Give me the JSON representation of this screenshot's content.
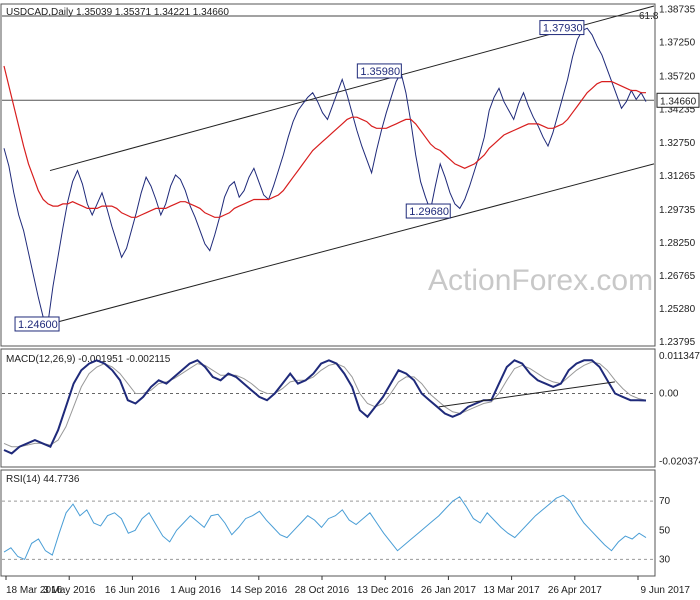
{
  "chart_data": {
    "type": "line",
    "symbol": "USDCAD",
    "timeframe": "Daily",
    "ohlc_header": "USDCAD,Daily  1.35039 1.35371 1.34221 1.34660",
    "watermark": "ActionForex.com",
    "x_labels": [
      "18 Mar 2016",
      "3 May 2016",
      "16 Jun 2016",
      "1 Aug 2016",
      "14 Sep 2016",
      "28 Oct 2016",
      "13 Dec 2016",
      "26 Jan 2017",
      "13 Mar 2017",
      "26 Apr 2017",
      "9 Jun 2017"
    ],
    "price_panel": {
      "ylim": [
        1.237,
        1.389
      ],
      "y_ticks": [
        "1.38735",
        "1.37250",
        "1.35720",
        "1.34235",
        "1.32750",
        "1.31265",
        "1.29735",
        "1.28250",
        "1.26765",
        "1.25280",
        "1.23795"
      ],
      "current_price": "1.34660",
      "fib_label": "61.8",
      "fib_level": 1.3845,
      "annotations": [
        {
          "label": "1.24600",
          "value": 1.246
        },
        {
          "label": "1.35980",
          "value": 1.3598
        },
        {
          "label": "1.29680",
          "value": 1.2968
        },
        {
          "label": "1.37930",
          "value": 1.3793
        }
      ],
      "channel_upper": [
        [
          0,
          1.315
        ],
        [
          1.0,
          1.389
        ]
      ],
      "channel_lower": [
        [
          0,
          1.246
        ],
        [
          1.0,
          1.318
        ]
      ],
      "series": [
        {
          "name": "close",
          "color": "#1f2a7a",
          "values": [
            1.325,
            1.317,
            1.305,
            1.295,
            1.288,
            1.278,
            1.268,
            1.258,
            1.249,
            1.247,
            1.263,
            1.276,
            1.289,
            1.301,
            1.31,
            1.315,
            1.309,
            1.3,
            1.295,
            1.3,
            1.305,
            1.298,
            1.29,
            1.283,
            1.276,
            1.28,
            1.288,
            1.296,
            1.305,
            1.312,
            1.308,
            1.302,
            1.295,
            1.3,
            1.308,
            1.313,
            1.311,
            1.306,
            1.299,
            1.294,
            1.288,
            1.282,
            1.279,
            1.286,
            1.294,
            1.303,
            1.308,
            1.31,
            1.303,
            1.306,
            1.312,
            1.316,
            1.31,
            1.304,
            1.302,
            1.308,
            1.315,
            1.322,
            1.33,
            1.337,
            1.342,
            1.345,
            1.348,
            1.35,
            1.346,
            1.341,
            1.338,
            1.344,
            1.35,
            1.356,
            1.349,
            1.341,
            1.333,
            1.326,
            1.32,
            1.314,
            1.324,
            1.333,
            1.341,
            1.348,
            1.355,
            1.359,
            1.35,
            1.337,
            1.322,
            1.31,
            1.303,
            1.297,
            1.308,
            1.318,
            1.312,
            1.305,
            1.3,
            1.298,
            1.302,
            1.308,
            1.315,
            1.322,
            1.33,
            1.342,
            1.348,
            1.352,
            1.346,
            1.342,
            1.338,
            1.345,
            1.35,
            1.344,
            1.339,
            1.335,
            1.33,
            1.326,
            1.332,
            1.34,
            1.348,
            1.356,
            1.366,
            1.374,
            1.378,
            1.379,
            1.376,
            1.371,
            1.367,
            1.361,
            1.355,
            1.349,
            1.343,
            1.346,
            1.351,
            1.347,
            1.35,
            1.346
          ]
        },
        {
          "name": "ema",
          "color": "#d81e1e",
          "values": [
            1.362,
            1.353,
            1.344,
            1.335,
            1.326,
            1.318,
            1.312,
            1.306,
            1.302,
            1.3,
            1.299,
            1.299,
            1.3,
            1.3,
            1.301,
            1.3,
            1.299,
            1.298,
            1.298,
            1.298,
            1.299,
            1.299,
            1.299,
            1.298,
            1.296,
            1.295,
            1.294,
            1.294,
            1.295,
            1.296,
            1.297,
            1.298,
            1.298,
            1.298,
            1.299,
            1.3,
            1.301,
            1.301,
            1.3,
            1.299,
            1.298,
            1.296,
            1.295,
            1.294,
            1.294,
            1.295,
            1.296,
            1.298,
            1.299,
            1.3,
            1.301,
            1.302,
            1.302,
            1.302,
            1.302,
            1.303,
            1.304,
            1.306,
            1.309,
            1.312,
            1.315,
            1.318,
            1.321,
            1.324,
            1.326,
            1.328,
            1.33,
            1.332,
            1.334,
            1.336,
            1.338,
            1.339,
            1.339,
            1.338,
            1.337,
            1.335,
            1.334,
            1.334,
            1.334,
            1.335,
            1.336,
            1.337,
            1.338,
            1.338,
            1.336,
            1.333,
            1.33,
            1.327,
            1.325,
            1.324,
            1.322,
            1.32,
            1.318,
            1.317,
            1.316,
            1.317,
            1.318,
            1.32,
            1.322,
            1.325,
            1.327,
            1.329,
            1.331,
            1.332,
            1.333,
            1.334,
            1.335,
            1.336,
            1.336,
            1.336,
            1.335,
            1.334,
            1.334,
            1.335,
            1.336,
            1.338,
            1.341,
            1.344,
            1.347,
            1.35,
            1.352,
            1.354,
            1.355,
            1.355,
            1.355,
            1.354,
            1.353,
            1.352,
            1.351,
            1.351,
            1.35,
            1.35
          ]
        }
      ]
    },
    "macd_panel": {
      "title": "MACD(12,26,9) -0.001951 -0.002115",
      "ylim": [
        -0.0215,
        0.0125
      ],
      "y_ticks": [
        "0.011347",
        "0.00",
        "-0.020374"
      ],
      "series": [
        {
          "name": "macd",
          "color": "#1f2a7a",
          "values": [
            -0.017,
            -0.018,
            -0.016,
            -0.015,
            -0.014,
            -0.015,
            -0.016,
            -0.011,
            -0.004,
            0.003,
            0.007,
            0.009,
            0.01,
            0.009,
            0.007,
            0.004,
            -0.002,
            -0.003,
            -0.001,
            0.002,
            0.004,
            0.003,
            0.005,
            0.007,
            0.009,
            0.01,
            0.008,
            0.005,
            0.004,
            0.006,
            0.005,
            0.003,
            0.001,
            -0.001,
            -0.002,
            0.0,
            0.003,
            0.006,
            0.003,
            0.004,
            0.006,
            0.009,
            0.01,
            0.009,
            0.006,
            0.002,
            -0.005,
            -0.007,
            -0.004,
            -0.001,
            0.003,
            0.007,
            0.006,
            0.004,
            0.0,
            -0.002,
            -0.004,
            -0.006,
            -0.007,
            -0.006,
            -0.004,
            -0.003,
            -0.002,
            -0.002,
            0.003,
            0.008,
            0.01,
            0.009,
            0.006,
            0.004,
            0.003,
            0.002,
            0.003,
            0.007,
            0.009,
            0.01,
            0.01,
            0.008,
            0.004,
            0.0,
            -0.001,
            -0.002,
            -0.002,
            -0.0021
          ]
        },
        {
          "name": "signal",
          "color": "#999999",
          "values": [
            -0.015,
            -0.016,
            -0.016,
            -0.0155,
            -0.015,
            -0.015,
            -0.0155,
            -0.014,
            -0.01,
            -0.004,
            0.002,
            0.006,
            0.008,
            0.009,
            0.008,
            0.006,
            0.003,
            0.0,
            0.0,
            0.001,
            0.003,
            0.0035,
            0.0045,
            0.006,
            0.0075,
            0.009,
            0.0085,
            0.007,
            0.0055,
            0.0055,
            0.0055,
            0.0045,
            0.003,
            0.001,
            0.0,
            0.0,
            0.0015,
            0.0035,
            0.004,
            0.004,
            0.005,
            0.007,
            0.0085,
            0.009,
            0.008,
            0.005,
            0.0,
            -0.003,
            -0.004,
            -0.003,
            0.0,
            0.0035,
            0.005,
            0.005,
            0.003,
            0.0,
            -0.002,
            -0.004,
            -0.0055,
            -0.006,
            -0.005,
            -0.004,
            -0.003,
            -0.0025,
            0.0,
            0.004,
            0.0075,
            0.0085,
            0.0075,
            0.006,
            0.0045,
            0.0035,
            0.003,
            0.005,
            0.007,
            0.0085,
            0.0095,
            0.009,
            0.007,
            0.004,
            0.0015,
            -0.0005,
            -0.0015,
            -0.002
          ]
        }
      ],
      "trendlines": [
        {
          "x": [
            0.67,
            0.94
          ],
          "y": [
            -0.004,
            0.0035
          ]
        }
      ]
    },
    "rsi_panel": {
      "title": "RSI(14) 44.7736",
      "ylim": [
        20,
        90
      ],
      "y_ticks": [
        "70",
        "50",
        "30"
      ],
      "levels": [
        70,
        30
      ],
      "series": [
        {
          "name": "rsi",
          "color": "#4a9ed6",
          "values": [
            35,
            38,
            32,
            30,
            41,
            44,
            36,
            33,
            48,
            62,
            68,
            60,
            64,
            55,
            53,
            60,
            62,
            58,
            48,
            50,
            58,
            62,
            54,
            46,
            42,
            50,
            55,
            60,
            56,
            52,
            60,
            61,
            55,
            47,
            52,
            58,
            60,
            63,
            57,
            52,
            47,
            45,
            50,
            55,
            60,
            57,
            52,
            58,
            60,
            64,
            57,
            54,
            58,
            62,
            55,
            48,
            42,
            36,
            40,
            44,
            48,
            52,
            56,
            60,
            65,
            70,
            73,
            66,
            58,
            55,
            62,
            57,
            52,
            48,
            45,
            50,
            55,
            60,
            64,
            68,
            72,
            74,
            70,
            62,
            55,
            50,
            45,
            40,
            36,
            42,
            46,
            44,
            48,
            45
          ]
        }
      ]
    }
  }
}
